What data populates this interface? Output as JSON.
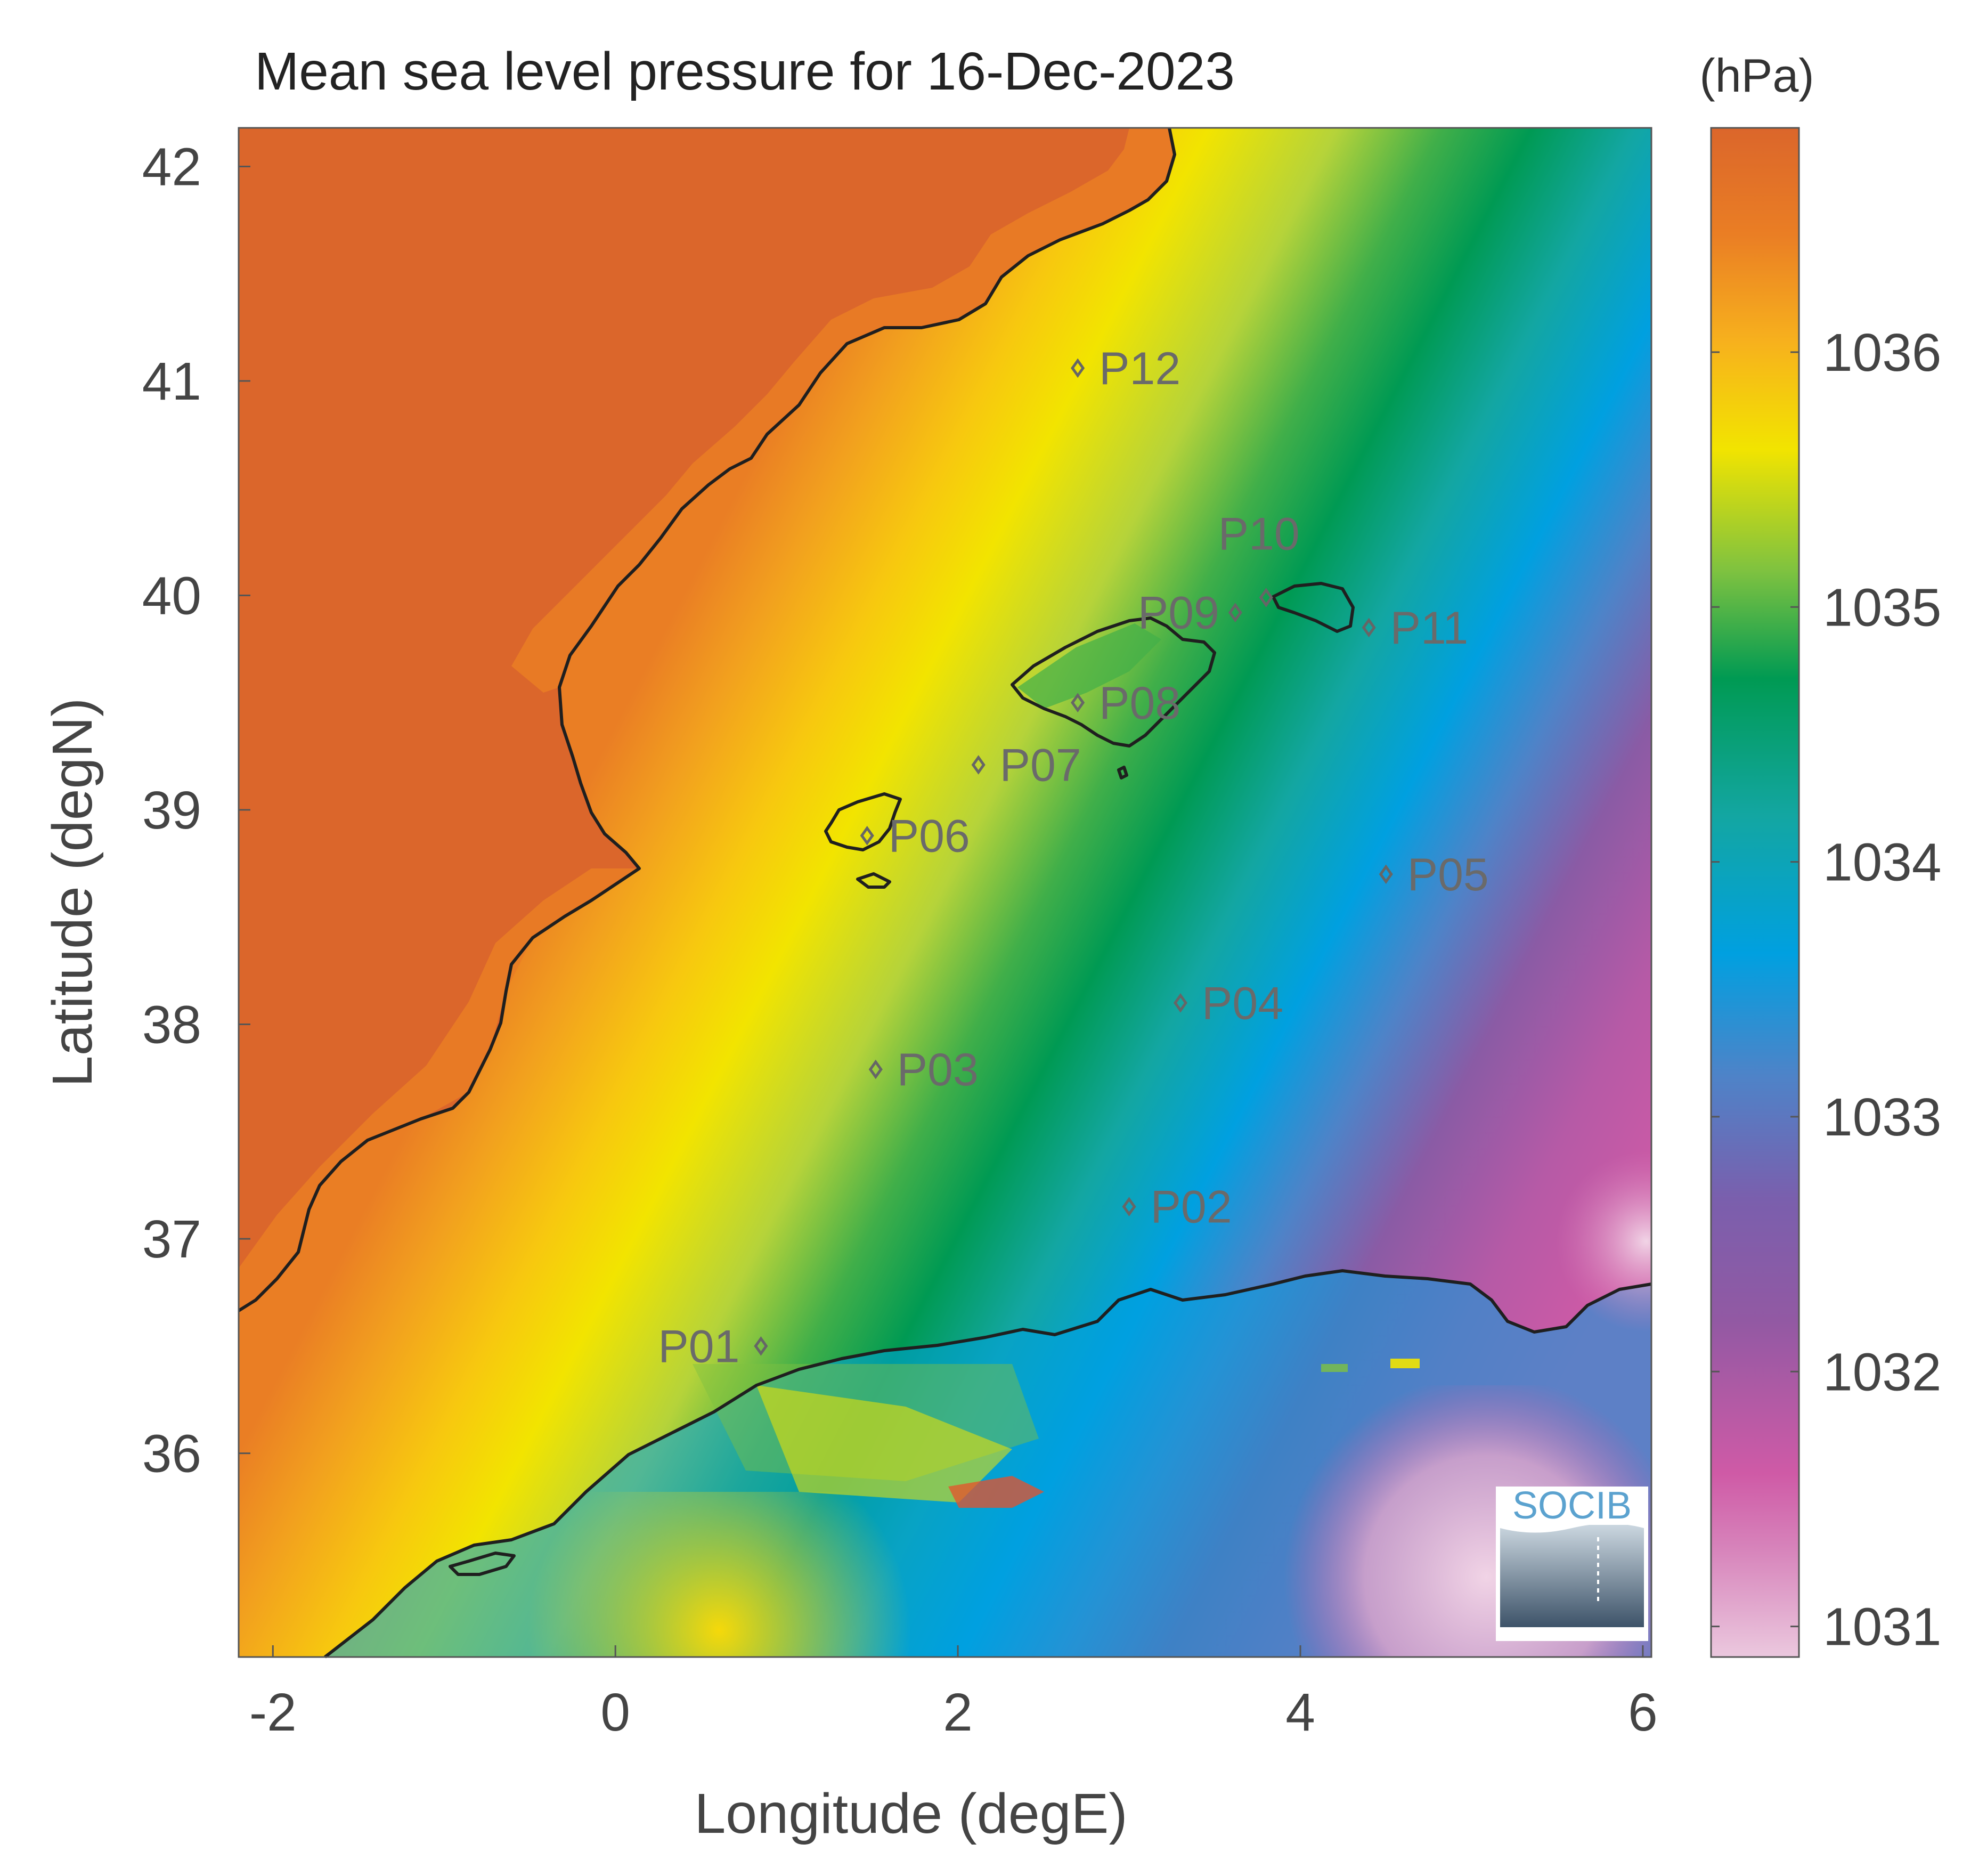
{
  "map": {
    "title": "Mean sea level pressure for 16-Dec-2023",
    "xlabel": "Longitude (degE)",
    "ylabel": "Latitude (degN)",
    "xlim": [
      -2.2,
      6.05
    ],
    "ylim": [
      35.05,
      42.18
    ],
    "xticks": [
      -2,
      0,
      2,
      4,
      6
    ],
    "yticks": [
      36,
      37,
      38,
      39,
      40,
      41,
      42
    ],
    "grid": false,
    "colorbar": {
      "unit": "(hPa)",
      "range": [
        1030.88,
        1036.88
      ],
      "ticks": [
        1031,
        1032,
        1033,
        1034,
        1035,
        1036
      ],
      "colormap": [
        "#e9bedb",
        "#cf5aa6",
        "#8e55a0",
        "#4e83c8",
        "#00a0e0",
        "#13a6a2",
        "#009a53",
        "#7ec240",
        "#f2e400",
        "#f7b11d",
        "#ea7e24",
        "#db662b"
      ]
    },
    "points": [
      {
        "label": "P01",
        "lon": 0.85,
        "lat": 36.5
      },
      {
        "label": "P02",
        "lon": 3.0,
        "lat": 37.15
      },
      {
        "label": "P03",
        "lon": 1.52,
        "lat": 37.79
      },
      {
        "label": "P04",
        "lon": 3.3,
        "lat": 38.1
      },
      {
        "label": "P05",
        "lon": 4.5,
        "lat": 38.7
      },
      {
        "label": "P06",
        "lon": 1.47,
        "lat": 38.88
      },
      {
        "label": "P07",
        "lon": 2.12,
        "lat": 39.21
      },
      {
        "label": "P08",
        "lon": 2.7,
        "lat": 39.5
      },
      {
        "label": "P09",
        "lon": 3.62,
        "lat": 39.92
      },
      {
        "label": "P10",
        "lon": 3.8,
        "lat": 39.99
      },
      {
        "label": "P11",
        "lon": 4.4,
        "lat": 39.85
      },
      {
        "label": "P12",
        "lon": 2.7,
        "lat": 41.06
      }
    ],
    "logo": {
      "text": "SOCIB"
    }
  }
}
